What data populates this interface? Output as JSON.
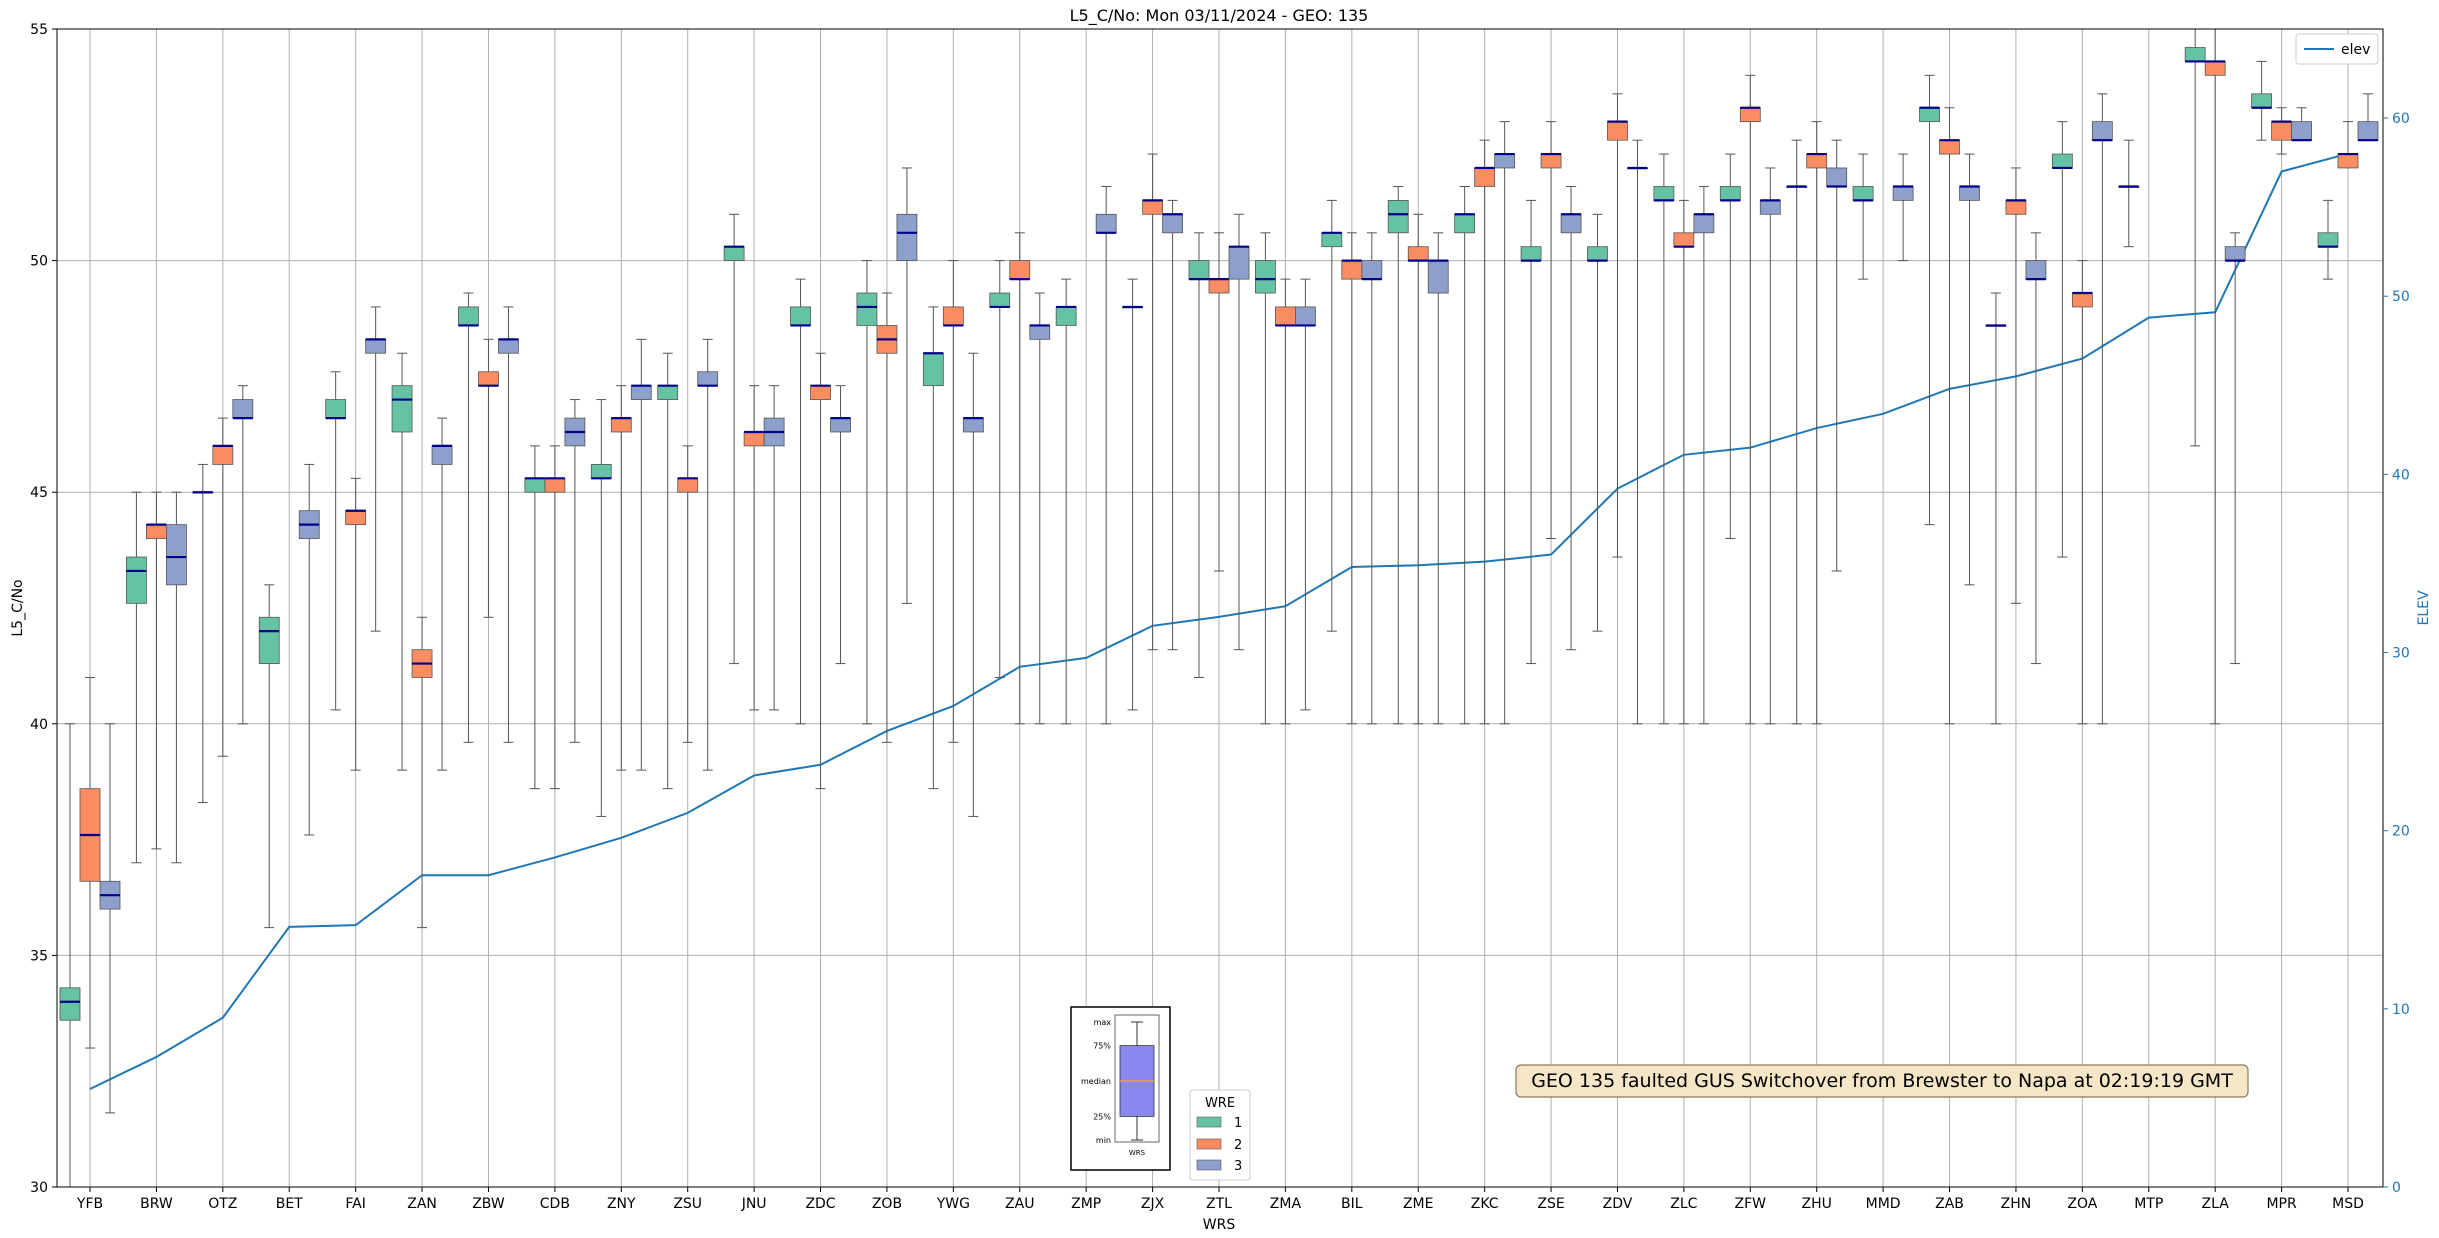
{
  "chart_data": {
    "type": "boxplot",
    "title": "L5_C/No: Mon 03/11/2024 - GEO: 135",
    "xlabel": "WRS",
    "ylabel": "L5_C/No",
    "ylabel_right": "ELEV",
    "ylim": [
      30,
      55
    ],
    "ylim_right": [
      0,
      65
    ],
    "yticks": [
      30,
      35,
      40,
      45,
      50,
      55
    ],
    "yticks_right": [
      0,
      10,
      20,
      30,
      40,
      50,
      60
    ],
    "grid": true,
    "categories": [
      "YFB",
      "BRW",
      "OTZ",
      "BET",
      "FAI",
      "ZAN",
      "ZBW",
      "CDB",
      "ZNY",
      "ZSU",
      "JNU",
      "ZDC",
      "ZOB",
      "YWG",
      "ZAU",
      "ZMP",
      "ZJX",
      "ZTL",
      "ZMA",
      "BIL",
      "ZME",
      "ZKC",
      "ZSE",
      "ZDV",
      "ZLC",
      "ZFW",
      "ZHU",
      "MMD",
      "ZAB",
      "ZHN",
      "ZOA",
      "MTP",
      "ZLA",
      "MPR",
      "MSD"
    ],
    "wre_colors": {
      "1": "#66c2a5",
      "2": "#fc8d62",
      "3": "#8da0cb"
    },
    "median_color": "#00008b",
    "series": [
      {
        "name": "1",
        "boxes": [
          [
            30,
            33.6,
            34,
            34.3,
            40
          ],
          [
            37,
            42.6,
            43.3,
            43.6,
            45
          ],
          [
            38.3,
            45,
            45,
            45,
            45.6
          ],
          [
            35.6,
            41.3,
            42,
            42.3,
            43
          ],
          [
            40.3,
            46.6,
            46.6,
            47,
            47.6
          ],
          [
            39,
            46.3,
            47,
            47.3,
            48
          ],
          [
            39.6,
            48.6,
            48.6,
            49,
            49.3
          ],
          [
            38.6,
            45,
            45.3,
            45.3,
            46
          ],
          [
            38,
            45.3,
            45.3,
            45.6,
            47
          ],
          [
            38.6,
            47,
            47.3,
            47.3,
            48
          ],
          [
            41.3,
            50,
            50.3,
            50.3,
            51
          ],
          [
            40,
            48.6,
            48.6,
            49,
            49.6
          ],
          [
            40,
            48.6,
            49,
            49.3,
            50
          ],
          [
            38.6,
            47.3,
            48,
            48,
            49
          ],
          [
            41,
            49,
            49,
            49.3,
            50
          ],
          [
            40,
            48.6,
            49,
            49,
            49.6
          ],
          [
            40.3,
            49,
            49,
            49,
            49.6
          ],
          [
            41,
            49.6,
            49.6,
            50,
            50.6
          ],
          [
            40,
            49.3,
            49.6,
            50,
            50.6
          ],
          [
            42,
            50.3,
            50.6,
            50.6,
            51.3
          ],
          [
            40,
            50.6,
            51,
            51.3,
            51.6
          ],
          [
            40,
            50.6,
            51,
            51,
            51.6
          ],
          [
            41.3,
            50,
            50,
            50.3,
            51.3
          ],
          [
            42,
            50,
            50,
            50.3,
            51
          ],
          [
            40,
            51.3,
            51.3,
            51.6,
            52.3
          ],
          [
            44,
            51.3,
            51.3,
            51.6,
            52.3
          ],
          [
            40,
            51.6,
            51.6,
            51.6,
            52.6
          ],
          [
            49.6,
            51.3,
            51.3,
            51.6,
            52.3
          ],
          [
            44.3,
            53,
            53.3,
            53.3,
            54
          ],
          [
            40,
            48.6,
            48.6,
            48.6,
            49.3
          ],
          [
            43.6,
            52,
            52,
            52.3,
            53
          ],
          [
            50.3,
            51.6,
            51.6,
            51.6,
            52.6
          ],
          [
            46,
            54.3,
            54.3,
            54.6,
            55
          ],
          [
            52.6,
            53.3,
            53.3,
            53.6,
            54.3
          ],
          [
            49.6,
            50.3,
            50.3,
            50.6,
            51.3
          ]
        ]
      },
      {
        "name": "2",
        "boxes": [
          [
            33,
            36.6,
            37.6,
            38.6,
            41
          ],
          [
            37.3,
            44,
            44.3,
            44.3,
            45
          ],
          [
            39.3,
            45.6,
            46,
            46,
            46.6
          ],
          null,
          [
            39,
            44.3,
            44.6,
            44.6,
            45.3
          ],
          [
            35.6,
            41,
            41.3,
            41.6,
            42.3
          ],
          [
            42.3,
            47.3,
            47.3,
            47.6,
            48.3
          ],
          [
            38.6,
            45,
            45.3,
            45.3,
            46
          ],
          [
            39,
            46.3,
            46.6,
            46.6,
            47.3
          ],
          [
            39.6,
            45,
            45.3,
            45.3,
            46
          ],
          [
            40.3,
            46,
            46.3,
            46.3,
            47.3
          ],
          [
            38.6,
            47,
            47.3,
            47.3,
            48
          ],
          [
            39.6,
            48,
            48.3,
            48.6,
            49.3
          ],
          [
            39.6,
            48.6,
            48.6,
            49,
            50
          ],
          [
            40,
            49.6,
            49.6,
            50,
            50.6
          ],
          null,
          [
            41.6,
            51,
            51.3,
            51.3,
            52.3
          ],
          [
            43.3,
            49.3,
            49.6,
            49.6,
            50.6
          ],
          [
            40,
            48.6,
            48.6,
            49,
            49.6
          ],
          [
            40,
            49.6,
            50,
            50,
            50.6
          ],
          [
            40,
            50,
            50,
            50.3,
            51
          ],
          [
            40,
            51.6,
            52,
            52,
            52.6
          ],
          [
            44,
            52,
            52.3,
            52.3,
            53
          ],
          [
            43.6,
            52.6,
            53,
            53,
            53.6
          ],
          [
            40,
            50.3,
            50.3,
            50.6,
            51.3
          ],
          [
            40,
            53,
            53.3,
            53.3,
            54
          ],
          [
            40,
            52,
            52.3,
            52.3,
            53
          ],
          null,
          [
            40,
            52.3,
            52.6,
            52.6,
            53.3
          ],
          [
            42.6,
            51,
            51.3,
            51.3,
            52
          ],
          [
            40,
            49,
            49.3,
            49.3,
            50
          ],
          null,
          [
            40,
            54,
            54.3,
            54.3,
            55
          ],
          [
            52.3,
            52.6,
            53,
            53,
            53.3
          ],
          [
            52.3,
            52,
            52.3,
            52.3,
            53
          ]
        ]
      },
      {
        "name": "3",
        "boxes": [
          [
            31.6,
            36,
            36.3,
            36.6,
            40
          ],
          [
            37,
            43,
            43.6,
            44.3,
            45
          ],
          [
            40,
            46.6,
            46.6,
            47,
            47.3
          ],
          [
            37.6,
            44,
            44.3,
            44.6,
            45.6
          ],
          [
            42,
            48,
            48.3,
            48.3,
            49
          ],
          [
            39,
            45.6,
            46,
            46,
            46.6
          ],
          [
            39.6,
            48,
            48.3,
            48.3,
            49
          ],
          [
            39.6,
            46,
            46.3,
            46.6,
            47
          ],
          [
            39,
            47,
            47.3,
            47.3,
            48.3
          ],
          [
            39,
            47.3,
            47.3,
            47.6,
            48.3
          ],
          [
            40.3,
            46,
            46.3,
            46.6,
            47.3
          ],
          [
            41.3,
            46.3,
            46.6,
            46.6,
            47.3
          ],
          [
            42.6,
            50,
            50.6,
            51,
            52
          ],
          [
            38,
            46.3,
            46.6,
            46.6,
            48
          ],
          [
            40,
            48.3,
            48.6,
            48.6,
            49.3
          ],
          [
            40,
            50.6,
            50.6,
            51,
            51.6
          ],
          [
            41.6,
            50.6,
            51,
            51,
            51.3
          ],
          [
            41.6,
            49.6,
            50.3,
            50.3,
            51
          ],
          [
            40.3,
            48.6,
            48.6,
            49,
            49.6
          ],
          [
            40,
            49.6,
            49.6,
            50,
            50.6
          ],
          [
            40,
            49.3,
            50,
            50,
            50.6
          ],
          [
            40,
            52,
            52.3,
            52.3,
            53
          ],
          [
            41.6,
            50.6,
            51,
            51,
            51.6
          ],
          [
            40,
            52,
            52,
            52,
            52.6
          ],
          [
            40,
            50.6,
            51,
            51,
            51.6
          ],
          [
            40,
            51,
            51.3,
            51.3,
            52
          ],
          [
            43.3,
            51.6,
            51.6,
            52,
            52.6
          ],
          [
            50,
            51.3,
            51.6,
            51.6,
            52.3
          ],
          [
            43,
            51.3,
            51.6,
            51.6,
            52.3
          ],
          [
            41.3,
            49.6,
            49.6,
            50,
            50.6
          ],
          [
            40,
            52.6,
            52.6,
            53,
            53.6
          ],
          null,
          [
            41.3,
            50,
            50,
            50.3,
            50.6
          ],
          [
            52.6,
            52.6,
            52.6,
            53,
            53.3
          ],
          [
            52.6,
            52.6,
            52.6,
            53,
            53.6
          ]
        ]
      }
    ],
    "elev_line": {
      "name": "elev",
      "color": "#1f77b4",
      "values": [
        5.5,
        7.3,
        9.5,
        14.6,
        14.7,
        17.5,
        17.5,
        18.5,
        19.6,
        21.0,
        23.1,
        23.7,
        25.6,
        27.0,
        29.2,
        29.7,
        31.5,
        32.0,
        32.6,
        34.8,
        34.9,
        35.1,
        35.5,
        39.2,
        41.1,
        41.5,
        42.6,
        43.4,
        44.8,
        45.5,
        46.5,
        48.8,
        49.1,
        57.0,
        58.0
      ]
    },
    "legend": {
      "title": "WRE",
      "entries": [
        "1",
        "2",
        "3"
      ],
      "placement": "bottom-center"
    },
    "legend_elev": {
      "entries": [
        "elev"
      ],
      "placement": "top-right"
    },
    "annotation": "GEO 135 faulted GUS Switchover from Brewster to Napa at 02:19:19 GMT",
    "inset_key": {
      "labels": [
        "max",
        "75%",
        "median",
        "25%",
        "min"
      ],
      "xlabel": "WRS",
      "values": {
        "min": 0,
        "q1": 0.2,
        "median": 0.5,
        "q3": 0.8,
        "max": 1
      },
      "fill": "#8888ee"
    }
  }
}
